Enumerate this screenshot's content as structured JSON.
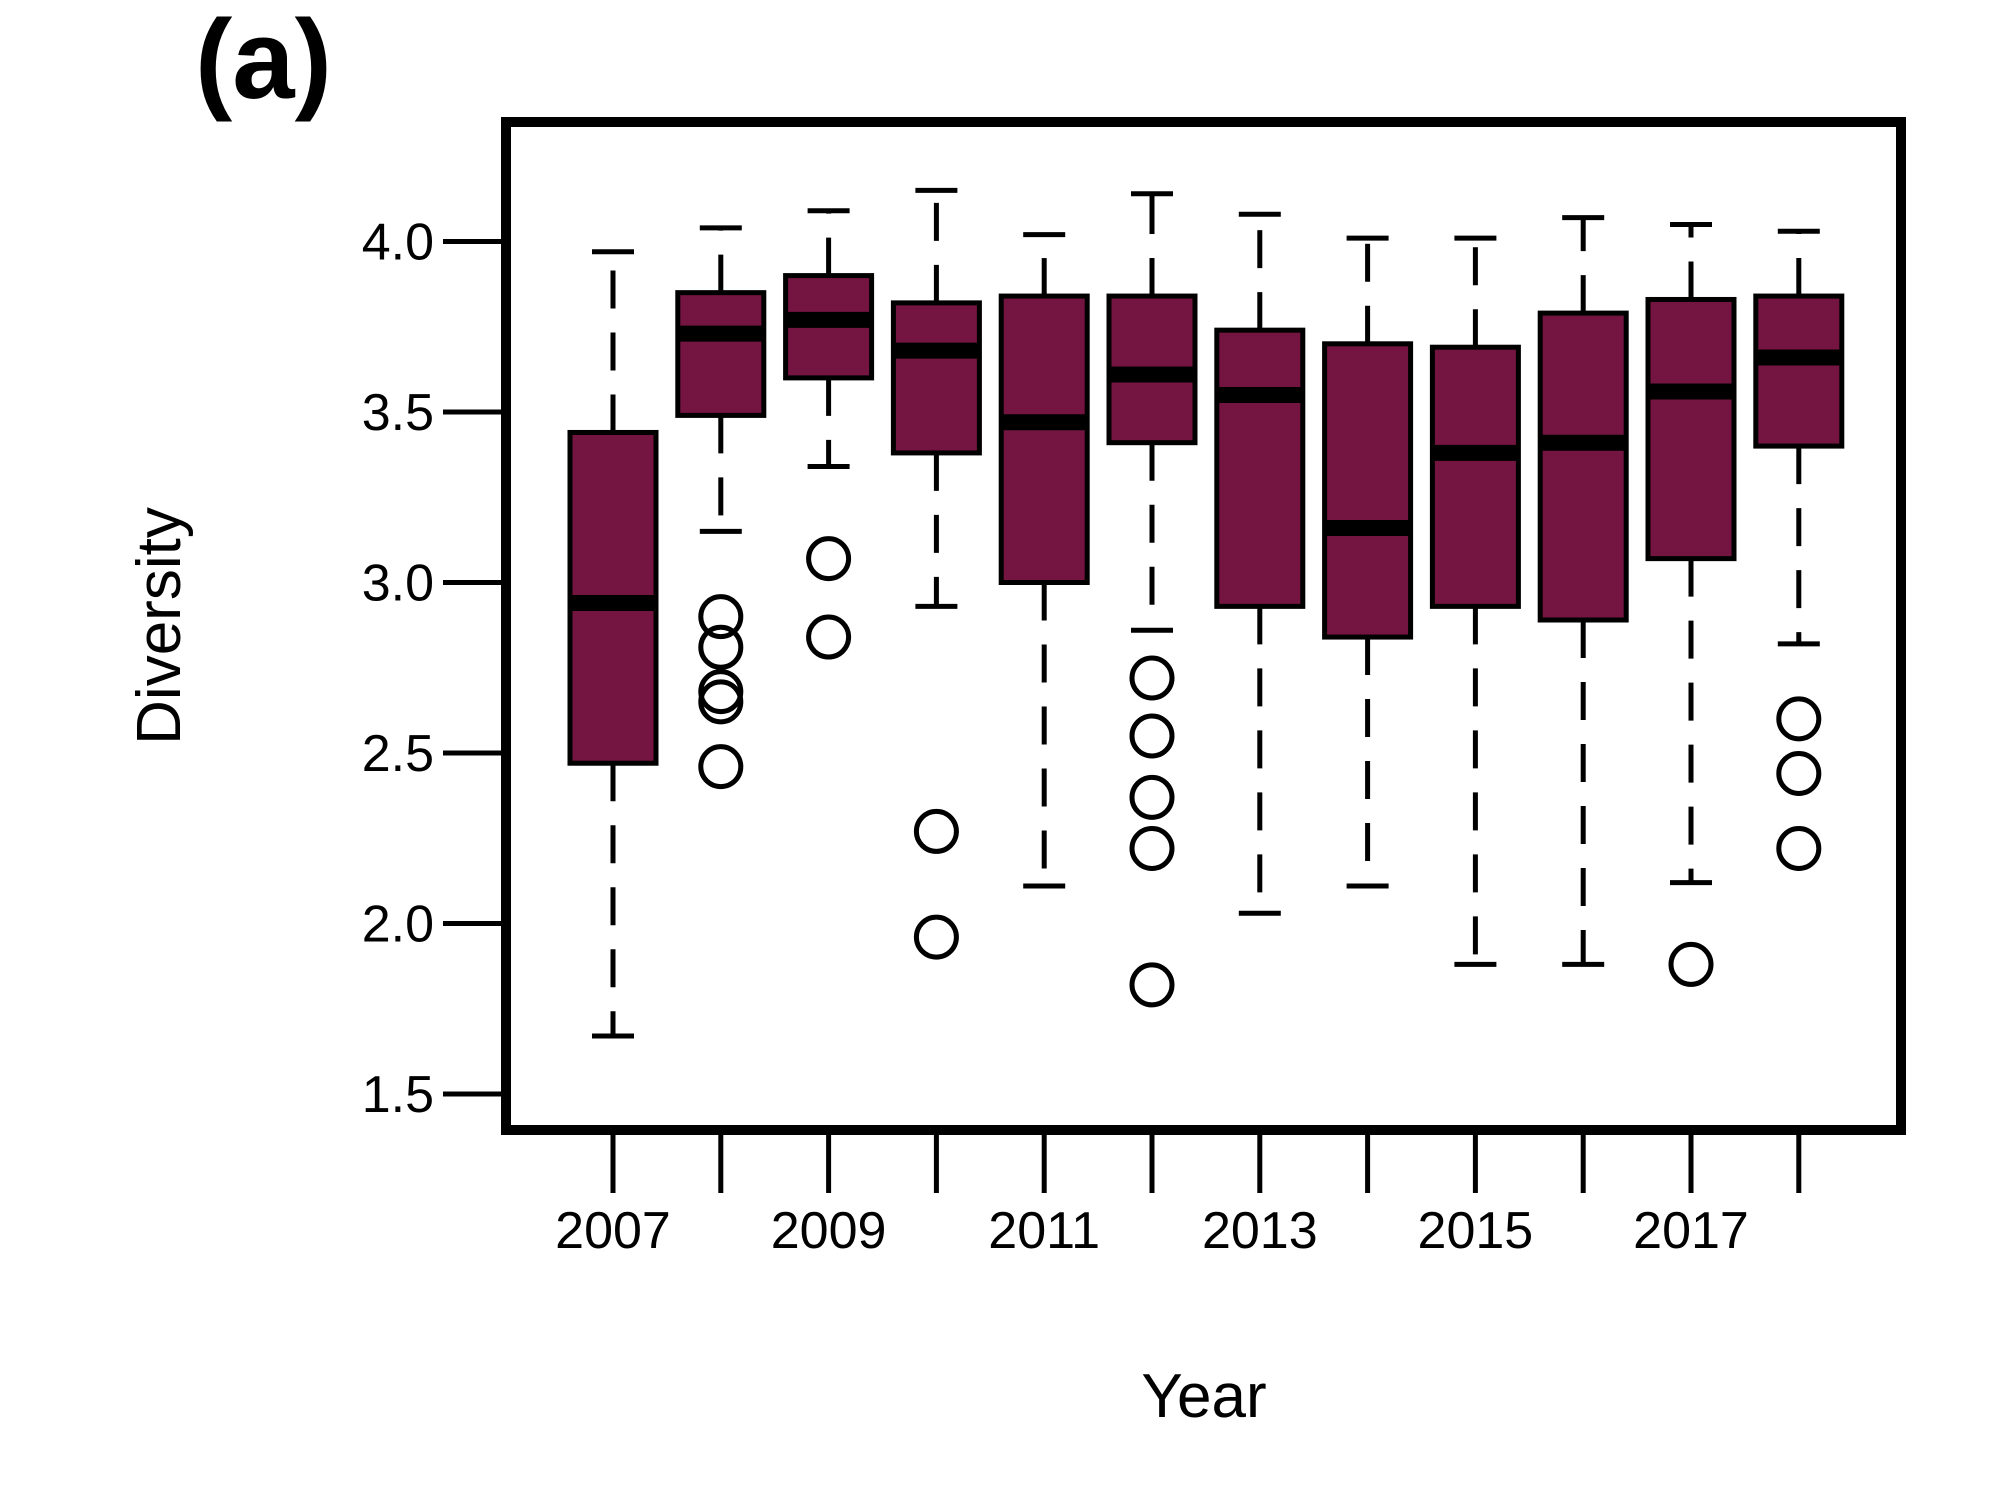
{
  "panel_label": "(a)",
  "chart_data": {
    "type": "box",
    "title": "",
    "xlabel": "Year",
    "ylabel": "Diversity",
    "categories": [
      "2007",
      "2008",
      "2009",
      "2010",
      "2011",
      "2012",
      "2013",
      "2014",
      "2015",
      "2016",
      "2017",
      "2018"
    ],
    "x_tick_labels_shown": [
      "2007",
      "",
      "2009",
      "",
      "2011",
      "",
      "2013",
      "",
      "2015",
      "",
      "2017",
      ""
    ],
    "y_ticks": [
      "1.5",
      "2.0",
      "2.5",
      "3.0",
      "3.5",
      "4.0"
    ],
    "ylim": [
      1.33,
      4.36
    ],
    "box_color": "#731540",
    "boxes": [
      {
        "year": "2007",
        "whisker_low": 1.67,
        "q1": 2.47,
        "median": 2.94,
        "q3": 3.44,
        "whisker_high": 3.97,
        "outliers": []
      },
      {
        "year": "2008",
        "whisker_low": 3.15,
        "q1": 3.49,
        "median": 3.73,
        "q3": 3.85,
        "whisker_high": 4.04,
        "outliers": [
          2.9,
          2.81,
          2.68,
          2.65,
          2.46
        ]
      },
      {
        "year": "2009",
        "whisker_low": 3.34,
        "q1": 3.6,
        "median": 3.77,
        "q3": 3.9,
        "whisker_high": 4.09,
        "outliers": [
          3.07,
          2.84
        ]
      },
      {
        "year": "2010",
        "whisker_low": 2.93,
        "q1": 3.38,
        "median": 3.68,
        "q3": 3.82,
        "whisker_high": 4.15,
        "outliers": [
          2.27,
          1.96
        ]
      },
      {
        "year": "2011",
        "whisker_low": 2.11,
        "q1": 3.0,
        "median": 3.47,
        "q3": 3.84,
        "whisker_high": 4.02,
        "outliers": []
      },
      {
        "year": "2012",
        "whisker_low": 2.86,
        "q1": 3.41,
        "median": 3.61,
        "q3": 3.84,
        "whisker_high": 4.14,
        "outliers": [
          2.72,
          2.55,
          2.37,
          2.22,
          1.82
        ]
      },
      {
        "year": "2013",
        "whisker_low": 2.03,
        "q1": 2.93,
        "median": 3.55,
        "q3": 3.74,
        "whisker_high": 4.08,
        "outliers": []
      },
      {
        "year": "2014",
        "whisker_low": 2.11,
        "q1": 2.84,
        "median": 3.16,
        "q3": 3.7,
        "whisker_high": 4.01,
        "outliers": []
      },
      {
        "year": "2015",
        "whisker_low": 1.88,
        "q1": 2.93,
        "median": 3.38,
        "q3": 3.69,
        "whisker_high": 4.01,
        "outliers": []
      },
      {
        "year": "2016",
        "whisker_low": 1.88,
        "q1": 2.89,
        "median": 3.41,
        "q3": 3.79,
        "whisker_high": 4.07,
        "outliers": []
      },
      {
        "year": "2017",
        "whisker_low": 2.12,
        "q1": 3.07,
        "median": 3.56,
        "q3": 3.83,
        "whisker_high": 4.05,
        "outliers": [
          1.88
        ]
      },
      {
        "year": "2018",
        "whisker_low": 2.82,
        "q1": 3.4,
        "median": 3.66,
        "q3": 3.84,
        "whisker_high": 4.03,
        "outliers": [
          2.6,
          2.44,
          2.22
        ]
      }
    ],
    "grid": false,
    "legend": "none"
  }
}
